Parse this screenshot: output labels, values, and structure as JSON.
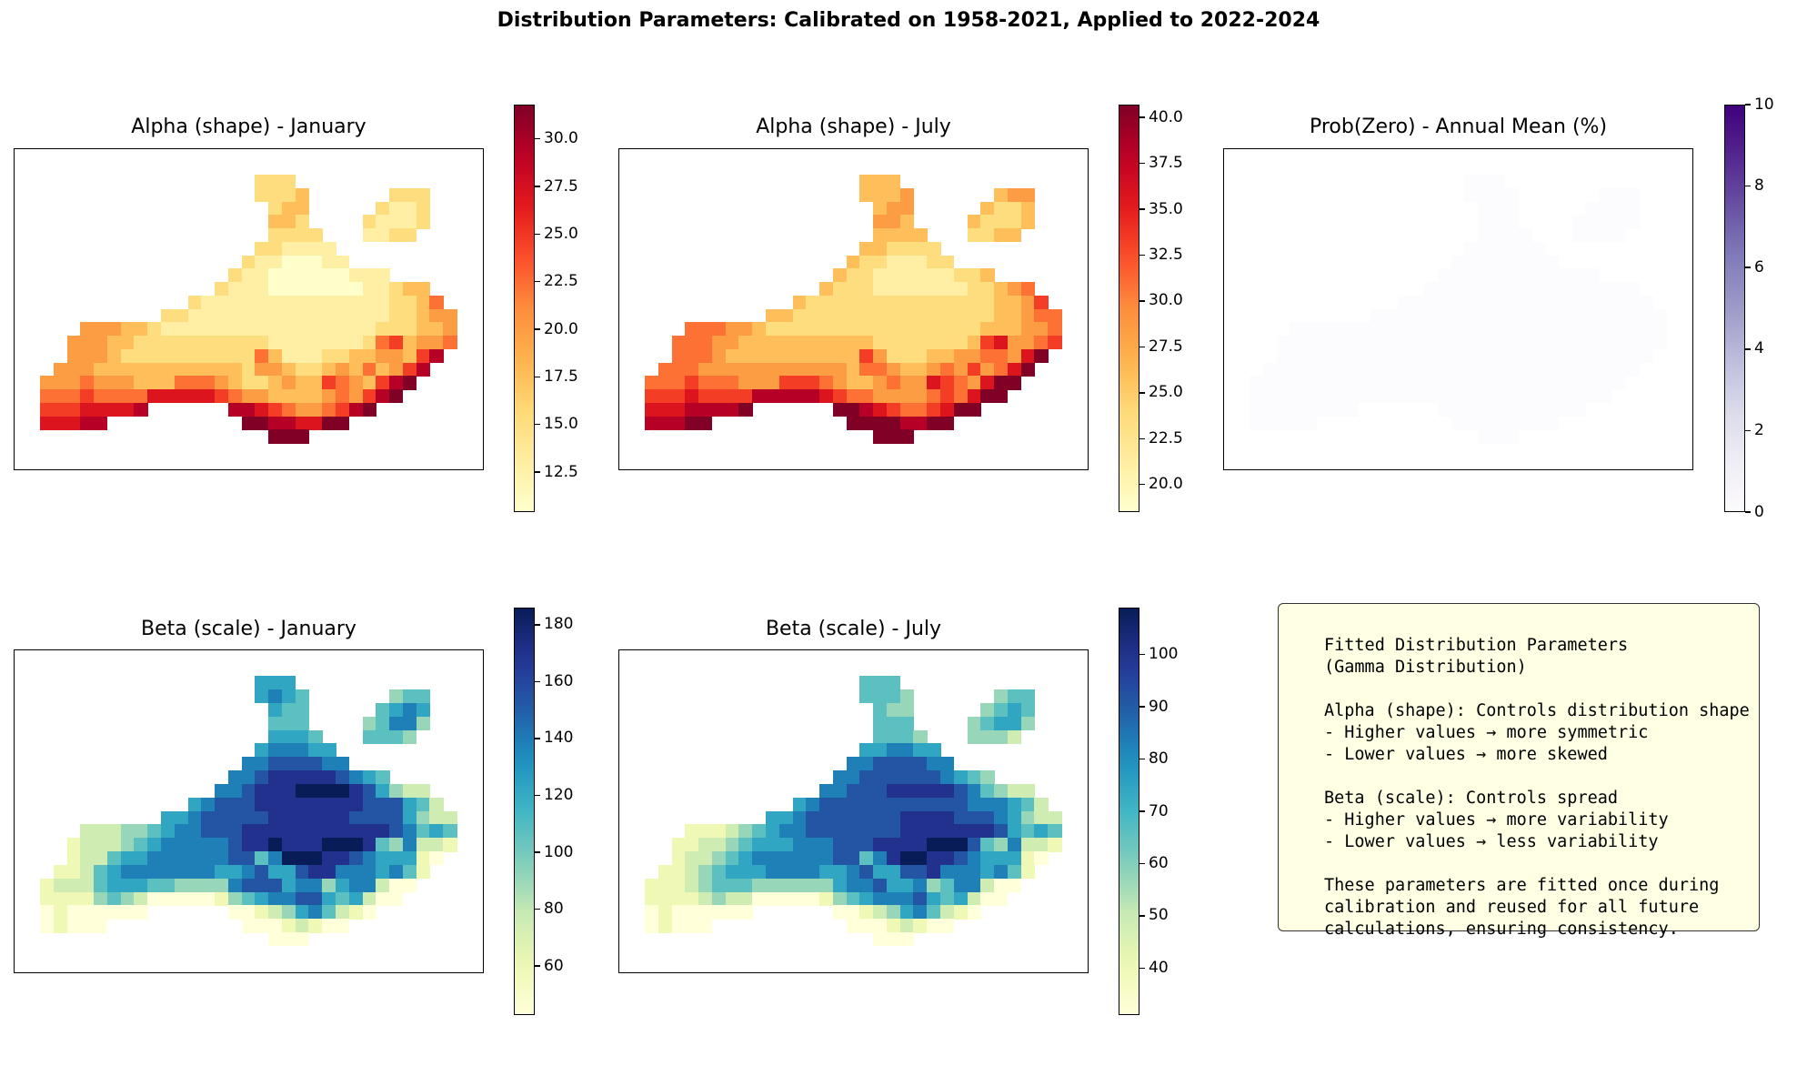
{
  "suptitle": "Distribution Parameters: Calibrated on 1958-2021, Applied to 2022-2024",
  "chart_data": [
    {
      "type": "heatmap",
      "title": "Alpha (shape) - January",
      "colormap": "YlOrRd",
      "vmin": 10.4,
      "vmax": 31.8,
      "ticks": [
        "12.5",
        "15.0",
        "17.5",
        "20.0",
        "22.5",
        "25.0",
        "27.5",
        "30.0"
      ],
      "value_encoding": "digit d -> vmin + d/9*(vmax-vmin); '.' = no data",
      "grid": [
        "................222............",
        "................2223......222..",
        ".................233.....2112..",
        ".................332....21112..",
        ".................2222...1122...",
        "................221111.........",
        "...............21100011........",
        "..............211000000111.....",
        ".............2111000000011233..",
        "...........2111111111111112235.",
        ".........2211111111111111122344",
        "...4443321111111111111111222334",
        "..44433222222222211111112563445",
        "..4443222222222253111223344368.",
        ".4443333333333324432234353468..",
        "4445444333555432234336543689...",
        "555655557777765443333454689....",
        "66677778......88765445689......",
        "77788..........99887799........",
        ".................999..........."
      ]
    },
    {
      "type": "heatmap",
      "title": "Alpha (shape) - July",
      "colormap": "YlOrRd",
      "vmin": 18.5,
      "vmax": 40.7,
      "ticks": [
        "20.0",
        "22.5",
        "25.0",
        "27.5",
        "30.0",
        "32.5",
        "35.0",
        "37.5",
        "40.0"
      ],
      "value_encoding": "digit d -> vmin + d/9*(vmax-vmin); '.' = no data",
      "grid": [
        "................333............",
        "................3334......344..",
        ".................344.....3223..",
        ".................443....32223..",
        ".................3333...2233...",
        "................332222.........",
        "...............32211122........",
        "..............322111111223.....",
        ".............3222111111122345..",
        "...........3222222222222223346.",
        ".........3322222222222222233455",
        "...5554432222222222222222333445",
        "..55544333333333322222223674456",
        "..5554333333333364222334455479.",
        ".5554444444444435543345464579..",
        "5556555444666543345447654799...",
        "666766668888876554444565799....",
        "77788889......99876556799......",
        "88899..........99998899........",
        ".................999..........."
      ]
    },
    {
      "type": "heatmap",
      "title": "Prob(Zero) - Annual Mean (%)",
      "colormap": "Purples",
      "vmin": 0,
      "vmax": 10,
      "ticks": [
        "0",
        "2",
        "4",
        "6",
        "8",
        "10"
      ],
      "value_encoding": "digit d -> vmin + d/9*(vmax-vmin); '.' = no data",
      "grid": [
        "................000............",
        "................0000......000..",
        ".................000.....0000..",
        ".................000....00000..",
        ".................0000...0000...",
        "................000000.........",
        "...............00000000........",
        "..............000000000000.....",
        ".............0000000000000000..",
        "...........0000000000000000000.",
        ".........0000000000000000000000",
        "...0000000000000000000000000000",
        "..00000000000000000000000000000",
        "..0000000000000000000000000000.",
        ".0000000000000000000000000000..",
        "0000000000000000000000000000...",
        "000000000000000000000000000....",
        "00000000......00000000000......",
        "00000..........00000000........",
        ".................000..........."
      ]
    },
    {
      "type": "heatmap",
      "title": "Beta (scale) - January",
      "colormap": "YlGnBu",
      "vmin": 42.8,
      "vmax": 186,
      "ticks": [
        "60",
        "80",
        "100",
        "120",
        "140",
        "160",
        "180"
      ],
      "value_encoding": "digit d -> vmin + d/9*(vmax-vmin); '.' = no data",
      "grid": [
        "................555............",
        "................5654......344..",
        ".................544.....4565..",
        ".................444....34663..",
        ".................5554...4443...",
        "................566655.........",
        "...............66777766........",
        "..............667888887654.....",
        ".............6678889999875322..",
        "...........5677788888888777542.",
        ".........5567777788888877775322",
        "...2223345667778888888888876454",
        "..12223456666678898889998436221",
        "..1224556666667746999887655510.",
        ".1124566666665567557886665641..",
        "1222455544333367775663566200...",
        "111134320000013456677545200....",
        "01000000......00123564210......",
        "01000..........00012100........",
        ".................000..........."
      ]
    },
    {
      "type": "heatmap",
      "title": "Beta (scale) - July",
      "colormap": "YlGnBu",
      "vmin": 31,
      "vmax": 109,
      "ticks": [
        "40",
        "50",
        "60",
        "70",
        "80",
        "90",
        "100"
      ],
      "value_encoding": "digit d -> vmin + d/9*(vmax-vmin); '.' = no data",
      "grid": [
        "................444............",
        "................4443......344..",
        ".................433.....3454..",
        ".................444....34553..",
        ".................4443...3332...",
        "................556655.........",
        "...............66777766........",
        "..............667777776543.....",
        ".............6677788888764322..",
        "...........5677777777777666542.",
        ".........5567777777888877765322",
        "...1112345667777777888888875454",
        "..11223455566677788889997436221",
        "..1223456666667746899887655510.",
        ".1123455566665567557786665641..",
        "1112344433333356675563466200...",
        "111123220000013456667545200....",
        "01000000......00123564210......",
        "01000..........00012100........",
        ".................000..........."
      ]
    }
  ],
  "note": {
    "lines": [
      "Fitted Distribution Parameters",
      "(Gamma Distribution)",
      "",
      "Alpha (shape): Controls distribution shape",
      "- Higher values → more symmetric",
      "- Lower values → more skewed",
      "",
      "Beta (scale): Controls spread",
      "- Higher values → more variability",
      "- Lower values → less variability",
      "",
      "These parameters are fitted once during",
      "calibration and reused for all future",
      "calculations, ensuring consistency."
    ]
  }
}
